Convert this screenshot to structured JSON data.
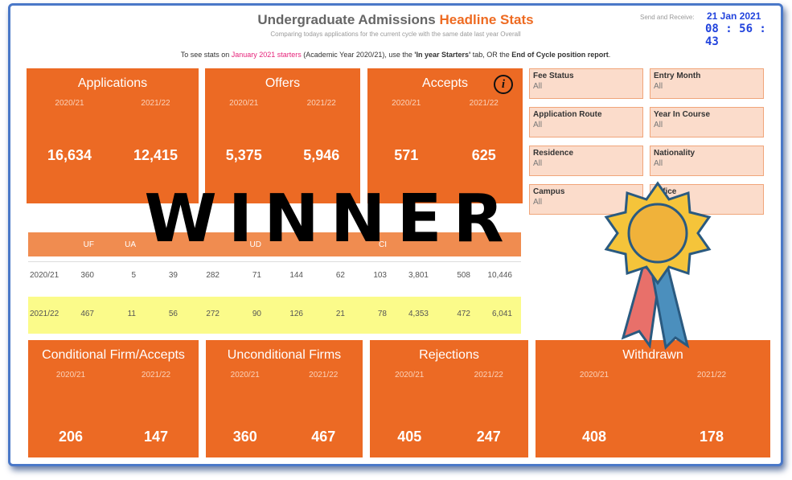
{
  "header": {
    "title": "Undergraduate Admissions",
    "title_highlight": "Headline Stats",
    "subtitle": "Comparing todays applications for the current cycle with the same date last year Overall",
    "refresh_label": "Send and Receive:",
    "date": "21 Jan 2021",
    "time": "08 : 56 : 43"
  },
  "notice": [
    "To see stats on ",
    "January 2021 starters",
    " (Academic Year 2020/21), use the ",
    "'In year Starters'",
    " tab, OR the ",
    "End of Cycle position report",
    "."
  ],
  "top_cards": [
    {
      "title": "Applications",
      "years": [
        "2020/21",
        "2021/22"
      ],
      "values": [
        "16,634",
        "12,415"
      ]
    },
    {
      "title": "Offers",
      "years": [
        "2020/21",
        "2021/22"
      ],
      "values": [
        "5,375",
        "5,946"
      ]
    },
    {
      "title": "Accepts",
      "years": [
        "2020/21",
        "2021/22"
      ],
      "values": [
        "571",
        "625"
      ],
      "icon": "i"
    }
  ],
  "filters": [
    {
      "label": "Fee Status",
      "value": "All"
    },
    {
      "label": "Entry Month",
      "value": "All"
    },
    {
      "label": "Application Route",
      "value": "All"
    },
    {
      "label": "Year In Course",
      "value": "All"
    },
    {
      "label": "Residence",
      "value": "All"
    },
    {
      "label": "Nationality",
      "value": "All"
    },
    {
      "label": "Campus",
      "value": "All"
    },
    {
      "label": "Office",
      "value": null
    }
  ],
  "table": {
    "columns": [
      "UF",
      "UA",
      null,
      null,
      "UD",
      null,
      null,
      "CI",
      null,
      null,
      null
    ],
    "rows": [
      {
        "label": "2020/21",
        "cells": [
          "360",
          "5",
          "39",
          "282",
          "71",
          "144",
          "62",
          "103",
          "3,801",
          "508",
          "10,446"
        ]
      },
      {
        "label": "2021/22",
        "cells": [
          "467",
          "11",
          "56",
          "272",
          "90",
          "126",
          "21",
          "78",
          "4,353",
          "472",
          "6,041"
        ]
      }
    ]
  },
  "bottom_cards": [
    {
      "title": "Conditional Firm/Accepts",
      "years": [
        "2020/21",
        "2021/22"
      ],
      "values": [
        "206",
        "147"
      ]
    },
    {
      "title": "Unconditional Firms",
      "years": [
        "2020/21",
        "2021/22"
      ],
      "values": [
        "360",
        "467"
      ]
    },
    {
      "title": "Rejections",
      "years": [
        "2020/21",
        "2021/22"
      ],
      "values": [
        "405",
        "247"
      ]
    },
    {
      "title": "Withdrawn",
      "years": [
        "2020/21",
        "2021/22"
      ],
      "values": [
        "408",
        "178"
      ]
    }
  ],
  "overlay": {
    "text": "WINNER"
  }
}
